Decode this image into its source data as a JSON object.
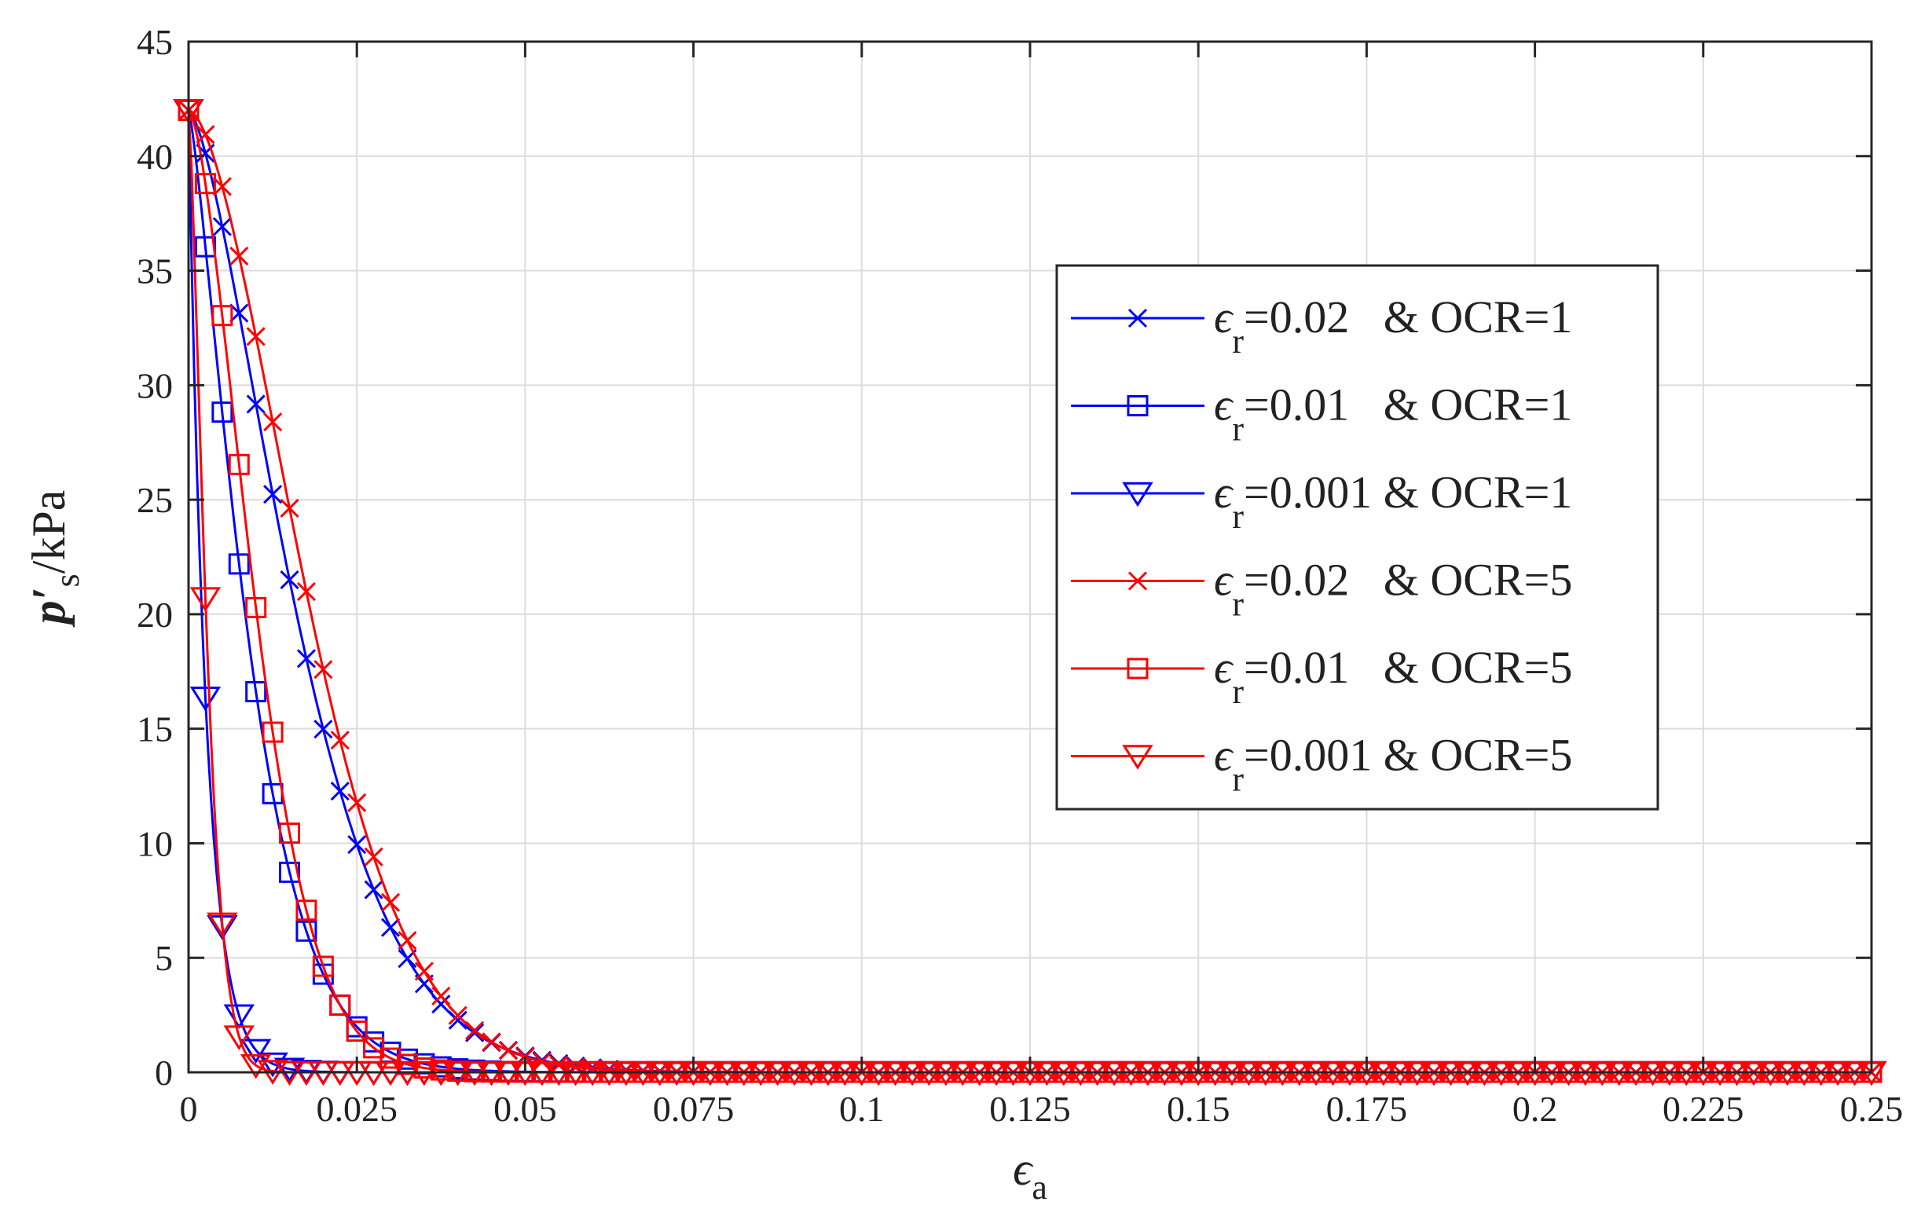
{
  "chart_data": {
    "type": "line",
    "title": "",
    "xlabel": "ϵ",
    "xlabel_sub": "a",
    "ylabel": "p′",
    "ylabel_sub": "s",
    "ylabel_unit": "/kPa",
    "xlim": [
      0,
      0.25
    ],
    "ylim": [
      0,
      45
    ],
    "grid": true,
    "legend_position": "right-center",
    "x_ticks": [
      0,
      0.025,
      0.05,
      0.075,
      0.1,
      0.125,
      0.15,
      0.175,
      0.2,
      0.225,
      0.25
    ],
    "x_tick_labels": [
      "0",
      "0.025",
      "0.05",
      "0.075",
      "0.1",
      "0.125",
      "0.15",
      "0.175",
      "0.2",
      "0.225",
      "0.25"
    ],
    "y_ticks": [
      0,
      5,
      10,
      15,
      20,
      25,
      30,
      35,
      40,
      45
    ],
    "y_tick_labels": [
      "0",
      "5",
      "10",
      "15",
      "20",
      "25",
      "30",
      "35",
      "40",
      "45"
    ],
    "series": [
      {
        "name": "ϵr=0.02 & OCR=1",
        "legend_main": "ϵ",
        "legend_sub": "r",
        "legend_rest": "=0.02   & OCR=1",
        "color": "#0000ff",
        "marker": "x",
        "p0": 42.0,
        "decay": 0.0196,
        "shape": 1.5,
        "marker_step": 0.0025
      },
      {
        "name": "ϵr=0.01 & OCR=1",
        "legend_main": "ϵ",
        "legend_sub": "r",
        "legend_rest": "=0.01   & OCR=1",
        "color": "#0000ff",
        "marker": "square",
        "p0": 42.0,
        "decay": 0.0106,
        "shape": 1.3,
        "marker_step": 0.0025
      },
      {
        "name": "ϵr=0.001 & OCR=1",
        "legend_main": "ϵ",
        "legend_sub": "r",
        "legend_rest": "=0.001 & OCR=1",
        "color": "#0000ff",
        "marker": "triangle-down",
        "p0": 42.0,
        "decay": 0.00265,
        "shape": 1.0,
        "marker_step": 0.0025
      },
      {
        "name": "ϵr=0.02 & OCR=5",
        "legend_main": "ϵ",
        "legend_sub": "r",
        "legend_rest": "=0.02   & OCR=5",
        "color": "#ff0000",
        "marker": "x",
        "p0": 42.0,
        "decay": 0.0217,
        "shape": 1.7,
        "marker_step": 0.0025
      },
      {
        "name": "ϵr=0.01 & OCR=5",
        "legend_main": "ϵ",
        "legend_sub": "r",
        "legend_rest": "=0.01   & OCR=5",
        "color": "#ff0000",
        "marker": "square",
        "p0": 42.0,
        "decay": 0.0122,
        "shape": 1.6,
        "marker_step": 0.0025
      },
      {
        "name": "ϵr=0.001 & OCR=5",
        "legend_main": "ϵ",
        "legend_sub": "r",
        "legend_rest": "=0.001 & OCR=5",
        "color": "#ff0000",
        "marker": "triangle-down",
        "p0": 42.0,
        "decay": 0.0032,
        "shape": 1.4,
        "marker_step": 0.0025
      }
    ]
  }
}
